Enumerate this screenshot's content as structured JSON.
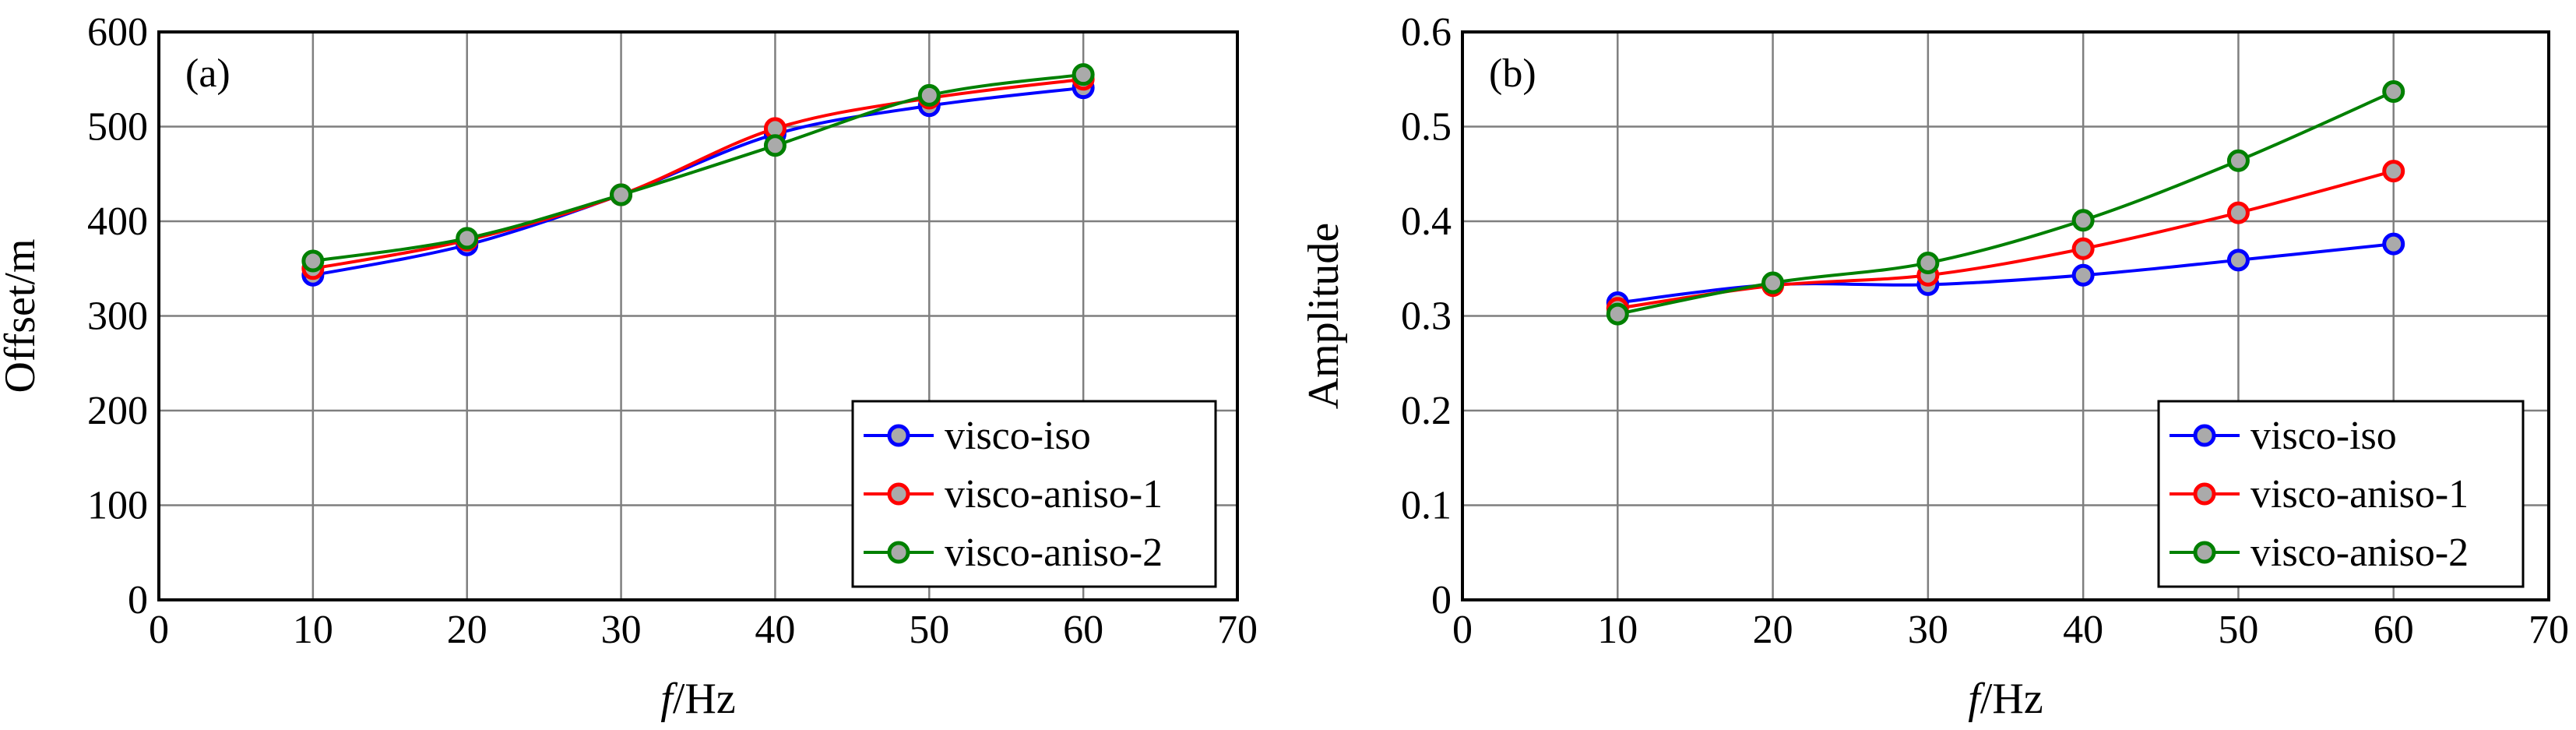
{
  "chart_data": [
    {
      "type": "line",
      "panel_label": "(a)",
      "xlabel_symbol": "f",
      "xlabel_unit": "/Hz",
      "ylabel": "Offset/m",
      "xlim": [
        0,
        70
      ],
      "ylim": [
        0,
        600
      ],
      "x_ticks": [
        "0",
        "10",
        "20",
        "30",
        "40",
        "50",
        "60",
        "70"
      ],
      "y_ticks": [
        "0",
        "100",
        "200",
        "300",
        "400",
        "500",
        "600"
      ],
      "grid": true,
      "legend_position": "bottom-right",
      "x": [
        10,
        20,
        30,
        40,
        50,
        60
      ],
      "series": [
        {
          "name": "visco-iso",
          "color": "#0000ff",
          "values": [
            343,
            375,
            428,
            492,
            522,
            541
          ]
        },
        {
          "name": "visco-aniso-1",
          "color": "#ff0000",
          "values": [
            350,
            380,
            428,
            498,
            530,
            550
          ]
        },
        {
          "name": "visco-aniso-2",
          "color": "#008000",
          "values": [
            358,
            382,
            428,
            480,
            533,
            555
          ]
        }
      ]
    },
    {
      "type": "line",
      "panel_label": "(b)",
      "xlabel_symbol": "f",
      "xlabel_unit": "/Hz",
      "ylabel": "Amplitude",
      "xlim": [
        0,
        70
      ],
      "ylim": [
        0,
        0.6
      ],
      "x_ticks": [
        "0",
        "10",
        "20",
        "30",
        "40",
        "50",
        "60",
        "70"
      ],
      "y_ticks": [
        "0",
        "0.1",
        "0.2",
        "0.3",
        "0.4",
        "0.5",
        "0.6"
      ],
      "grid": true,
      "legend_position": "bottom-right",
      "x": [
        10,
        20,
        30,
        40,
        50,
        60
      ],
      "series": [
        {
          "name": "visco-iso",
          "color": "#0000ff",
          "values": [
            0.314,
            0.333,
            0.333,
            0.343,
            0.359,
            0.376
          ]
        },
        {
          "name": "visco-aniso-1",
          "color": "#ff0000",
          "values": [
            0.308,
            0.332,
            0.343,
            0.371,
            0.409,
            0.453
          ]
        },
        {
          "name": "visco-aniso-2",
          "color": "#008000",
          "values": [
            0.302,
            0.335,
            0.356,
            0.401,
            0.464,
            0.537
          ]
        }
      ]
    }
  ]
}
